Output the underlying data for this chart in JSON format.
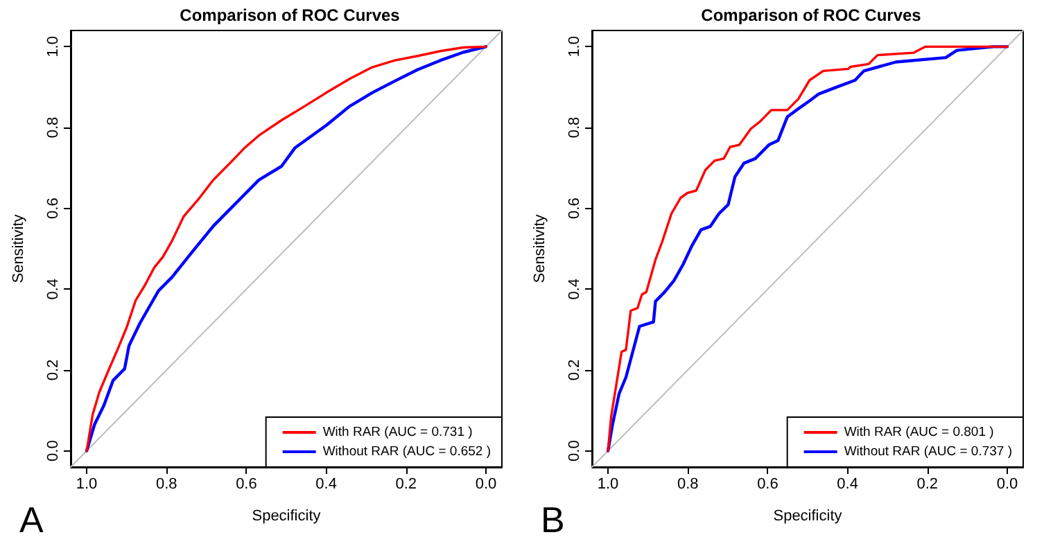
{
  "chart_data": [
    {
      "type": "line",
      "title": "Comparison of ROC Curves",
      "xlabel": "Specificity",
      "ylabel": "Sensitivity",
      "annotations": [
        "A"
      ],
      "xlim": [
        1.04,
        -0.04
      ],
      "ylim": [
        -0.04,
        1.04
      ],
      "xticks": [
        {
          "value": 1,
          "label": "1.0"
        },
        {
          "value": 0.8,
          "label": "0.8"
        },
        {
          "value": 0.6,
          "label": "0.6"
        },
        {
          "value": 0.4,
          "label": "0.4"
        },
        {
          "value": 0.2,
          "label": "0.2"
        },
        {
          "value": 0,
          "label": "0.0"
        }
      ],
      "yticks": [
        {
          "value": 0,
          "label": "0.0"
        },
        {
          "value": 0.2,
          "label": "0.2"
        },
        {
          "value": 0.4,
          "label": "0.4"
        },
        {
          "value": 0.6,
          "label": "0.6"
        },
        {
          "value": 0.8,
          "label": "0.8"
        },
        {
          "value": 1,
          "label": "1.0"
        }
      ],
      "grid": false,
      "legend": "bottom right",
      "marker": "none",
      "line_style": "solid",
      "series": [
        {
          "color": "#bebebe",
          "x": [
            1.04,
            -0.04
          ],
          "values": [
            -0.04,
            1.04
          ]
        },
        {
          "name": "With RAR (AUC = 0.731 )",
          "color": "#ff0000",
          "x": [
            1,
            0.985,
            0.968,
            0.945,
            0.923,
            0.9,
            0.877,
            0.854,
            0.831,
            0.809,
            0.786,
            0.757,
            0.718,
            0.683,
            0.638,
            0.604,
            0.569,
            0.512,
            0.455,
            0.4,
            0.342,
            0.285,
            0.228,
            0.171,
            0.114,
            0.057,
            0
          ],
          "values": [
            0,
            0.09,
            0.146,
            0.2,
            0.25,
            0.305,
            0.373,
            0.41,
            0.453,
            0.48,
            0.52,
            0.58,
            0.625,
            0.67,
            0.715,
            0.75,
            0.78,
            0.818,
            0.852,
            0.886,
            0.92,
            0.949,
            0.966,
            0.977,
            0.989,
            0.998,
            1
          ]
        },
        {
          "name": "Without RAR (AUC = 0.652 )",
          "color": "#0000ff",
          "x": [
            1,
            0.98,
            0.957,
            0.934,
            0.905,
            0.894,
            0.866,
            0.82,
            0.786,
            0.74,
            0.683,
            0.626,
            0.569,
            0.512,
            0.478,
            0.399,
            0.342,
            0.285,
            0.228,
            0.171,
            0.114,
            0.057,
            0
          ],
          "values": [
            0,
            0.066,
            0.112,
            0.174,
            0.203,
            0.26,
            0.317,
            0.396,
            0.43,
            0.487,
            0.556,
            0.613,
            0.67,
            0.704,
            0.75,
            0.806,
            0.852,
            0.886,
            0.915,
            0.943,
            0.966,
            0.986,
            1
          ]
        }
      ]
    },
    {
      "type": "line",
      "title": "Comparison of ROC Curves",
      "xlabel": "Specificity",
      "ylabel": "Sensitivity",
      "annotations": [
        "B"
      ],
      "xlim": [
        1.04,
        -0.04
      ],
      "ylim": [
        -0.04,
        1.04
      ],
      "xticks": [
        {
          "value": 1,
          "label": "1.0"
        },
        {
          "value": 0.8,
          "label": "0.8"
        },
        {
          "value": 0.6,
          "label": "0.6"
        },
        {
          "value": 0.4,
          "label": "0.4"
        },
        {
          "value": 0.2,
          "label": "0.2"
        },
        {
          "value": 0,
          "label": "0.0"
        }
      ],
      "yticks": [
        {
          "value": 0,
          "label": "0.0"
        },
        {
          "value": 0.2,
          "label": "0.2"
        },
        {
          "value": 0.4,
          "label": "0.4"
        },
        {
          "value": 0.6,
          "label": "0.6"
        },
        {
          "value": 0.8,
          "label": "0.8"
        },
        {
          "value": 1,
          "label": "1.0"
        }
      ],
      "grid": false,
      "legend": "bottom right",
      "marker": "none",
      "line_style": "solid",
      "series": [
        {
          "color": "#bebebe",
          "x": [
            1.04,
            -0.04
          ],
          "values": [
            -0.04,
            1.04
          ]
        },
        {
          "name": "With RAR (AUC = 0.801 )",
          "color": "#ff0000",
          "x": [
            1,
            0.992,
            0.977,
            0.966,
            0.955,
            0.943,
            0.926,
            0.915,
            0.904,
            0.881,
            0.864,
            0.841,
            0.818,
            0.801,
            0.779,
            0.756,
            0.733,
            0.71,
            0.694,
            0.671,
            0.642,
            0.62,
            0.591,
            0.551,
            0.523,
            0.495,
            0.461,
            0.398,
            0.393,
            0.347,
            0.325,
            0.234,
            0.205,
            0
          ],
          "values": [
            0,
            0.085,
            0.177,
            0.245,
            0.25,
            0.347,
            0.353,
            0.387,
            0.393,
            0.473,
            0.518,
            0.587,
            0.626,
            0.638,
            0.644,
            0.695,
            0.718,
            0.723,
            0.752,
            0.757,
            0.797,
            0.814,
            0.843,
            0.843,
            0.871,
            0.917,
            0.94,
            0.945,
            0.95,
            0.957,
            0.979,
            0.985,
            1,
            1
          ]
        },
        {
          "name": "Without RAR (AUC = 0.737 )",
          "color": "#0000ff",
          "x": [
            1,
            0.989,
            0.972,
            0.955,
            0.938,
            0.921,
            0.886,
            0.881,
            0.858,
            0.835,
            0.812,
            0.79,
            0.767,
            0.744,
            0.722,
            0.699,
            0.682,
            0.659,
            0.631,
            0.597,
            0.574,
            0.551,
            0.528,
            0.495,
            0.472,
            0.427,
            0.381,
            0.359,
            0.279,
            0.154,
            0.126,
            0.035,
            0
          ],
          "values": [
            0,
            0.063,
            0.142,
            0.182,
            0.245,
            0.308,
            0.319,
            0.37,
            0.393,
            0.421,
            0.461,
            0.507,
            0.547,
            0.555,
            0.587,
            0.609,
            0.678,
            0.712,
            0.723,
            0.757,
            0.768,
            0.826,
            0.843,
            0.866,
            0.883,
            0.9,
            0.917,
            0.94,
            0.962,
            0.973,
            0.991,
            1,
            1
          ]
        }
      ]
    }
  ]
}
